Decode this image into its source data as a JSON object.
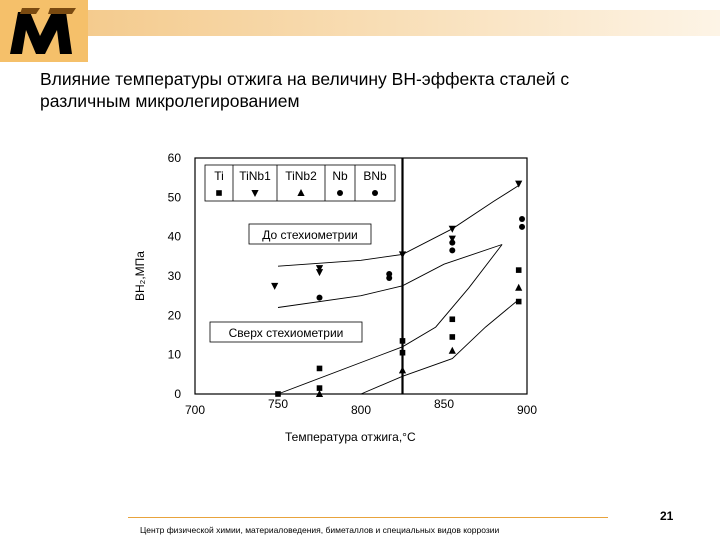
{
  "slide": {
    "title_line1": "Влияние температуры отжига на величину ВН-эффекта сталей с",
    "title_line2": "различным микролегированием",
    "footer": "Центр физической химии, материаловедения, биметаллов и специальных видов коррозии",
    "page_number": "21"
  },
  "colors": {
    "accent": "#e8a33c",
    "band": "#f4cb8e",
    "logo": "#000000",
    "logo_bg": "#f5c06a"
  },
  "chart_data": {
    "type": "scatter",
    "xlabel": "Температура отжига,°С",
    "ylabel": "ВН₂,МПа",
    "xlim": [
      700,
      900
    ],
    "ylim": [
      0,
      60
    ],
    "x_ticks": [
      "700",
      "750",
      "800",
      "850",
      "900"
    ],
    "y_ticks": [
      "0",
      "10",
      "20",
      "30",
      "40",
      "50",
      "60"
    ],
    "vline_x": 825,
    "grid": false,
    "legend_position": "top-left",
    "annotations": [
      "До стехиометрии",
      "Сверх стехиометрии"
    ],
    "series": [
      {
        "name": "Ti",
        "marker": "square",
        "points": [
          [
            750,
            0
          ],
          [
            775,
            1.5
          ],
          [
            775,
            6.5
          ],
          [
            825,
            13.5
          ],
          [
            825,
            10.5
          ],
          [
            855,
            19
          ],
          [
            855,
            14.5
          ],
          [
            895,
            31.5
          ],
          [
            895,
            23.5
          ]
        ]
      },
      {
        "name": "TiNb1",
        "marker": "triangle-down",
        "points": [
          [
            748,
            27.5
          ],
          [
            775,
            32
          ],
          [
            775,
            31
          ],
          [
            825,
            35.5
          ],
          [
            855,
            42
          ],
          [
            855,
            39.5
          ],
          [
            895,
            53.5
          ]
        ]
      },
      {
        "name": "TiNb2",
        "marker": "triangle-up",
        "points": [
          [
            775,
            0
          ],
          [
            825,
            6
          ],
          [
            855,
            11
          ],
          [
            895,
            27
          ]
        ]
      },
      {
        "name": "Nb",
        "marker": "circle",
        "points": [
          [
            775,
            24.5
          ],
          [
            817,
            29.5
          ],
          [
            855,
            36.5
          ],
          [
            897,
            44.5
          ]
        ]
      },
      {
        "name": "BNb",
        "marker": "circle",
        "points": [
          [
            817,
            30.5
          ],
          [
            855,
            38.5
          ],
          [
            897,
            42.5
          ]
        ]
      }
    ],
    "curves": [
      {
        "points": [
          [
            750,
            32.5
          ],
          [
            800,
            34
          ],
          [
            825,
            35.5
          ],
          [
            855,
            42
          ],
          [
            880,
            49
          ],
          [
            895,
            53
          ]
        ]
      },
      {
        "points": [
          [
            750,
            22
          ],
          [
            800,
            25
          ],
          [
            825,
            27.5
          ],
          [
            850,
            33
          ],
          [
            885,
            38
          ]
        ]
      },
      {
        "points": [
          [
            750,
            0
          ],
          [
            800,
            8
          ],
          [
            825,
            12
          ],
          [
            845,
            17
          ],
          [
            865,
            27
          ],
          [
            885,
            38
          ]
        ]
      },
      {
        "points": [
          [
            800,
            0
          ],
          [
            825,
            4.5
          ],
          [
            855,
            9
          ],
          [
            875,
            17
          ],
          [
            895,
            24
          ]
        ]
      }
    ]
  }
}
